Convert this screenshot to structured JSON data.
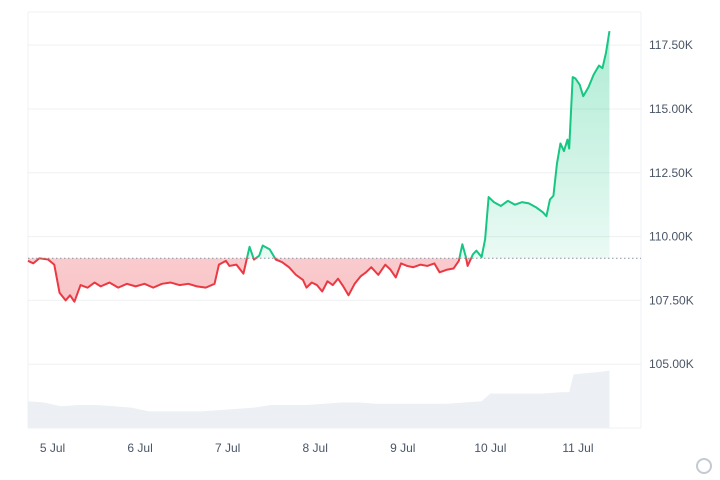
{
  "chart_data": {
    "type": "area",
    "baseline": 109150,
    "ylim": [
      102500,
      118800
    ],
    "y_ticks": [
      105000,
      107500,
      110000,
      112500,
      115000,
      117500
    ],
    "y_tick_labels": [
      "105.00K",
      "107.50K",
      "110.00K",
      "112.50K",
      "115.00K",
      "117.50K"
    ],
    "x_ticks": [
      1,
      2,
      3,
      4,
      5,
      6,
      7
    ],
    "x_tick_labels": [
      "5 Jul",
      "6 Jul",
      "7 Jul",
      "8 Jul",
      "9 Jul",
      "10 Jul",
      "11 Jul"
    ],
    "xlim": [
      0.72,
      7.72
    ],
    "colors": {
      "up": "#16c784",
      "down": "#ea3943",
      "volume": "#eceff3",
      "grid": "#eef0f3"
    },
    "series": [
      {
        "values": [
          [
            0.72,
            109050
          ],
          [
            0.78,
            108950
          ],
          [
            0.85,
            109150
          ],
          [
            0.95,
            109100
          ],
          [
            1.02,
            108900
          ],
          [
            1.08,
            107800
          ],
          [
            1.15,
            107500
          ],
          [
            1.2,
            107700
          ],
          [
            1.25,
            107450
          ],
          [
            1.32,
            108100
          ],
          [
            1.4,
            108000
          ],
          [
            1.48,
            108200
          ],
          [
            1.55,
            108050
          ],
          [
            1.65,
            108200
          ],
          [
            1.75,
            108000
          ],
          [
            1.85,
            108150
          ],
          [
            1.95,
            108050
          ],
          [
            2.05,
            108150
          ],
          [
            2.15,
            108000
          ],
          [
            2.25,
            108150
          ],
          [
            2.35,
            108200
          ],
          [
            2.45,
            108100
          ],
          [
            2.55,
            108150
          ],
          [
            2.65,
            108050
          ],
          [
            2.75,
            108000
          ],
          [
            2.85,
            108150
          ],
          [
            2.9,
            108900
          ],
          [
            2.98,
            109050
          ],
          [
            3.02,
            108850
          ],
          [
            3.1,
            108900
          ],
          [
            3.18,
            108550
          ],
          [
            3.25,
            109600
          ],
          [
            3.3,
            109100
          ],
          [
            3.36,
            109250
          ],
          [
            3.4,
            109650
          ],
          [
            3.48,
            109500
          ],
          [
            3.55,
            109100
          ],
          [
            3.62,
            109000
          ],
          [
            3.7,
            108800
          ],
          [
            3.78,
            108500
          ],
          [
            3.86,
            108300
          ],
          [
            3.9,
            108000
          ],
          [
            3.96,
            108200
          ],
          [
            4.02,
            108100
          ],
          [
            4.08,
            107850
          ],
          [
            4.14,
            108250
          ],
          [
            4.2,
            108100
          ],
          [
            4.26,
            108350
          ],
          [
            4.32,
            108050
          ],
          [
            4.38,
            107700
          ],
          [
            4.45,
            108150
          ],
          [
            4.52,
            108450
          ],
          [
            4.58,
            108600
          ],
          [
            4.64,
            108800
          ],
          [
            4.72,
            108500
          ],
          [
            4.8,
            108900
          ],
          [
            4.86,
            108700
          ],
          [
            4.92,
            108400
          ],
          [
            4.98,
            108950
          ],
          [
            5.05,
            108850
          ],
          [
            5.12,
            108800
          ],
          [
            5.2,
            108900
          ],
          [
            5.28,
            108850
          ],
          [
            5.36,
            108950
          ],
          [
            5.42,
            108600
          ],
          [
            5.5,
            108700
          ],
          [
            5.58,
            108750
          ],
          [
            5.64,
            109050
          ],
          [
            5.68,
            109700
          ],
          [
            5.72,
            109200
          ],
          [
            5.74,
            108850
          ],
          [
            5.8,
            109300
          ],
          [
            5.84,
            109450
          ],
          [
            5.9,
            109200
          ],
          [
            5.94,
            109900
          ],
          [
            5.98,
            111550
          ],
          [
            6.04,
            111350
          ],
          [
            6.12,
            111200
          ],
          [
            6.2,
            111400
          ],
          [
            6.28,
            111250
          ],
          [
            6.36,
            111350
          ],
          [
            6.44,
            111300
          ],
          [
            6.52,
            111150
          ],
          [
            6.6,
            110950
          ],
          [
            6.64,
            110800
          ],
          [
            6.68,
            111450
          ],
          [
            6.72,
            111600
          ],
          [
            6.76,
            112850
          ],
          [
            6.8,
            113650
          ],
          [
            6.84,
            113350
          ],
          [
            6.88,
            113800
          ],
          [
            6.9,
            113450
          ],
          [
            6.94,
            116250
          ],
          [
            6.97,
            116200
          ],
          [
            7.02,
            115950
          ],
          [
            7.06,
            115500
          ],
          [
            7.12,
            115850
          ],
          [
            7.18,
            116350
          ],
          [
            7.24,
            116700
          ],
          [
            7.28,
            116600
          ],
          [
            7.32,
            117200
          ],
          [
            7.36,
            118050
          ]
        ]
      }
    ],
    "volume": [
      [
        0.72,
        103550
      ],
      [
        0.9,
        103500
      ],
      [
        1.1,
        103350
      ],
      [
        1.3,
        103400
      ],
      [
        1.5,
        103400
      ],
      [
        1.7,
        103350
      ],
      [
        1.9,
        103300
      ],
      [
        2.1,
        103150
      ],
      [
        2.3,
        103150
      ],
      [
        2.5,
        103150
      ],
      [
        2.7,
        103150
      ],
      [
        2.9,
        103200
      ],
      [
        3.1,
        103250
      ],
      [
        3.3,
        103300
      ],
      [
        3.5,
        103400
      ],
      [
        3.7,
        103400
      ],
      [
        3.9,
        103400
      ],
      [
        4.1,
        103450
      ],
      [
        4.3,
        103500
      ],
      [
        4.5,
        103500
      ],
      [
        4.7,
        103450
      ],
      [
        4.9,
        103450
      ],
      [
        5.1,
        103450
      ],
      [
        5.3,
        103450
      ],
      [
        5.5,
        103450
      ],
      [
        5.7,
        103500
      ],
      [
        5.9,
        103550
      ],
      [
        6.0,
        103850
      ],
      [
        6.2,
        103850
      ],
      [
        6.4,
        103850
      ],
      [
        6.6,
        103850
      ],
      [
        6.8,
        103900
      ],
      [
        6.9,
        103900
      ],
      [
        6.95,
        104600
      ],
      [
        7.1,
        104650
      ],
      [
        7.25,
        104700
      ],
      [
        7.36,
        104750
      ]
    ]
  }
}
